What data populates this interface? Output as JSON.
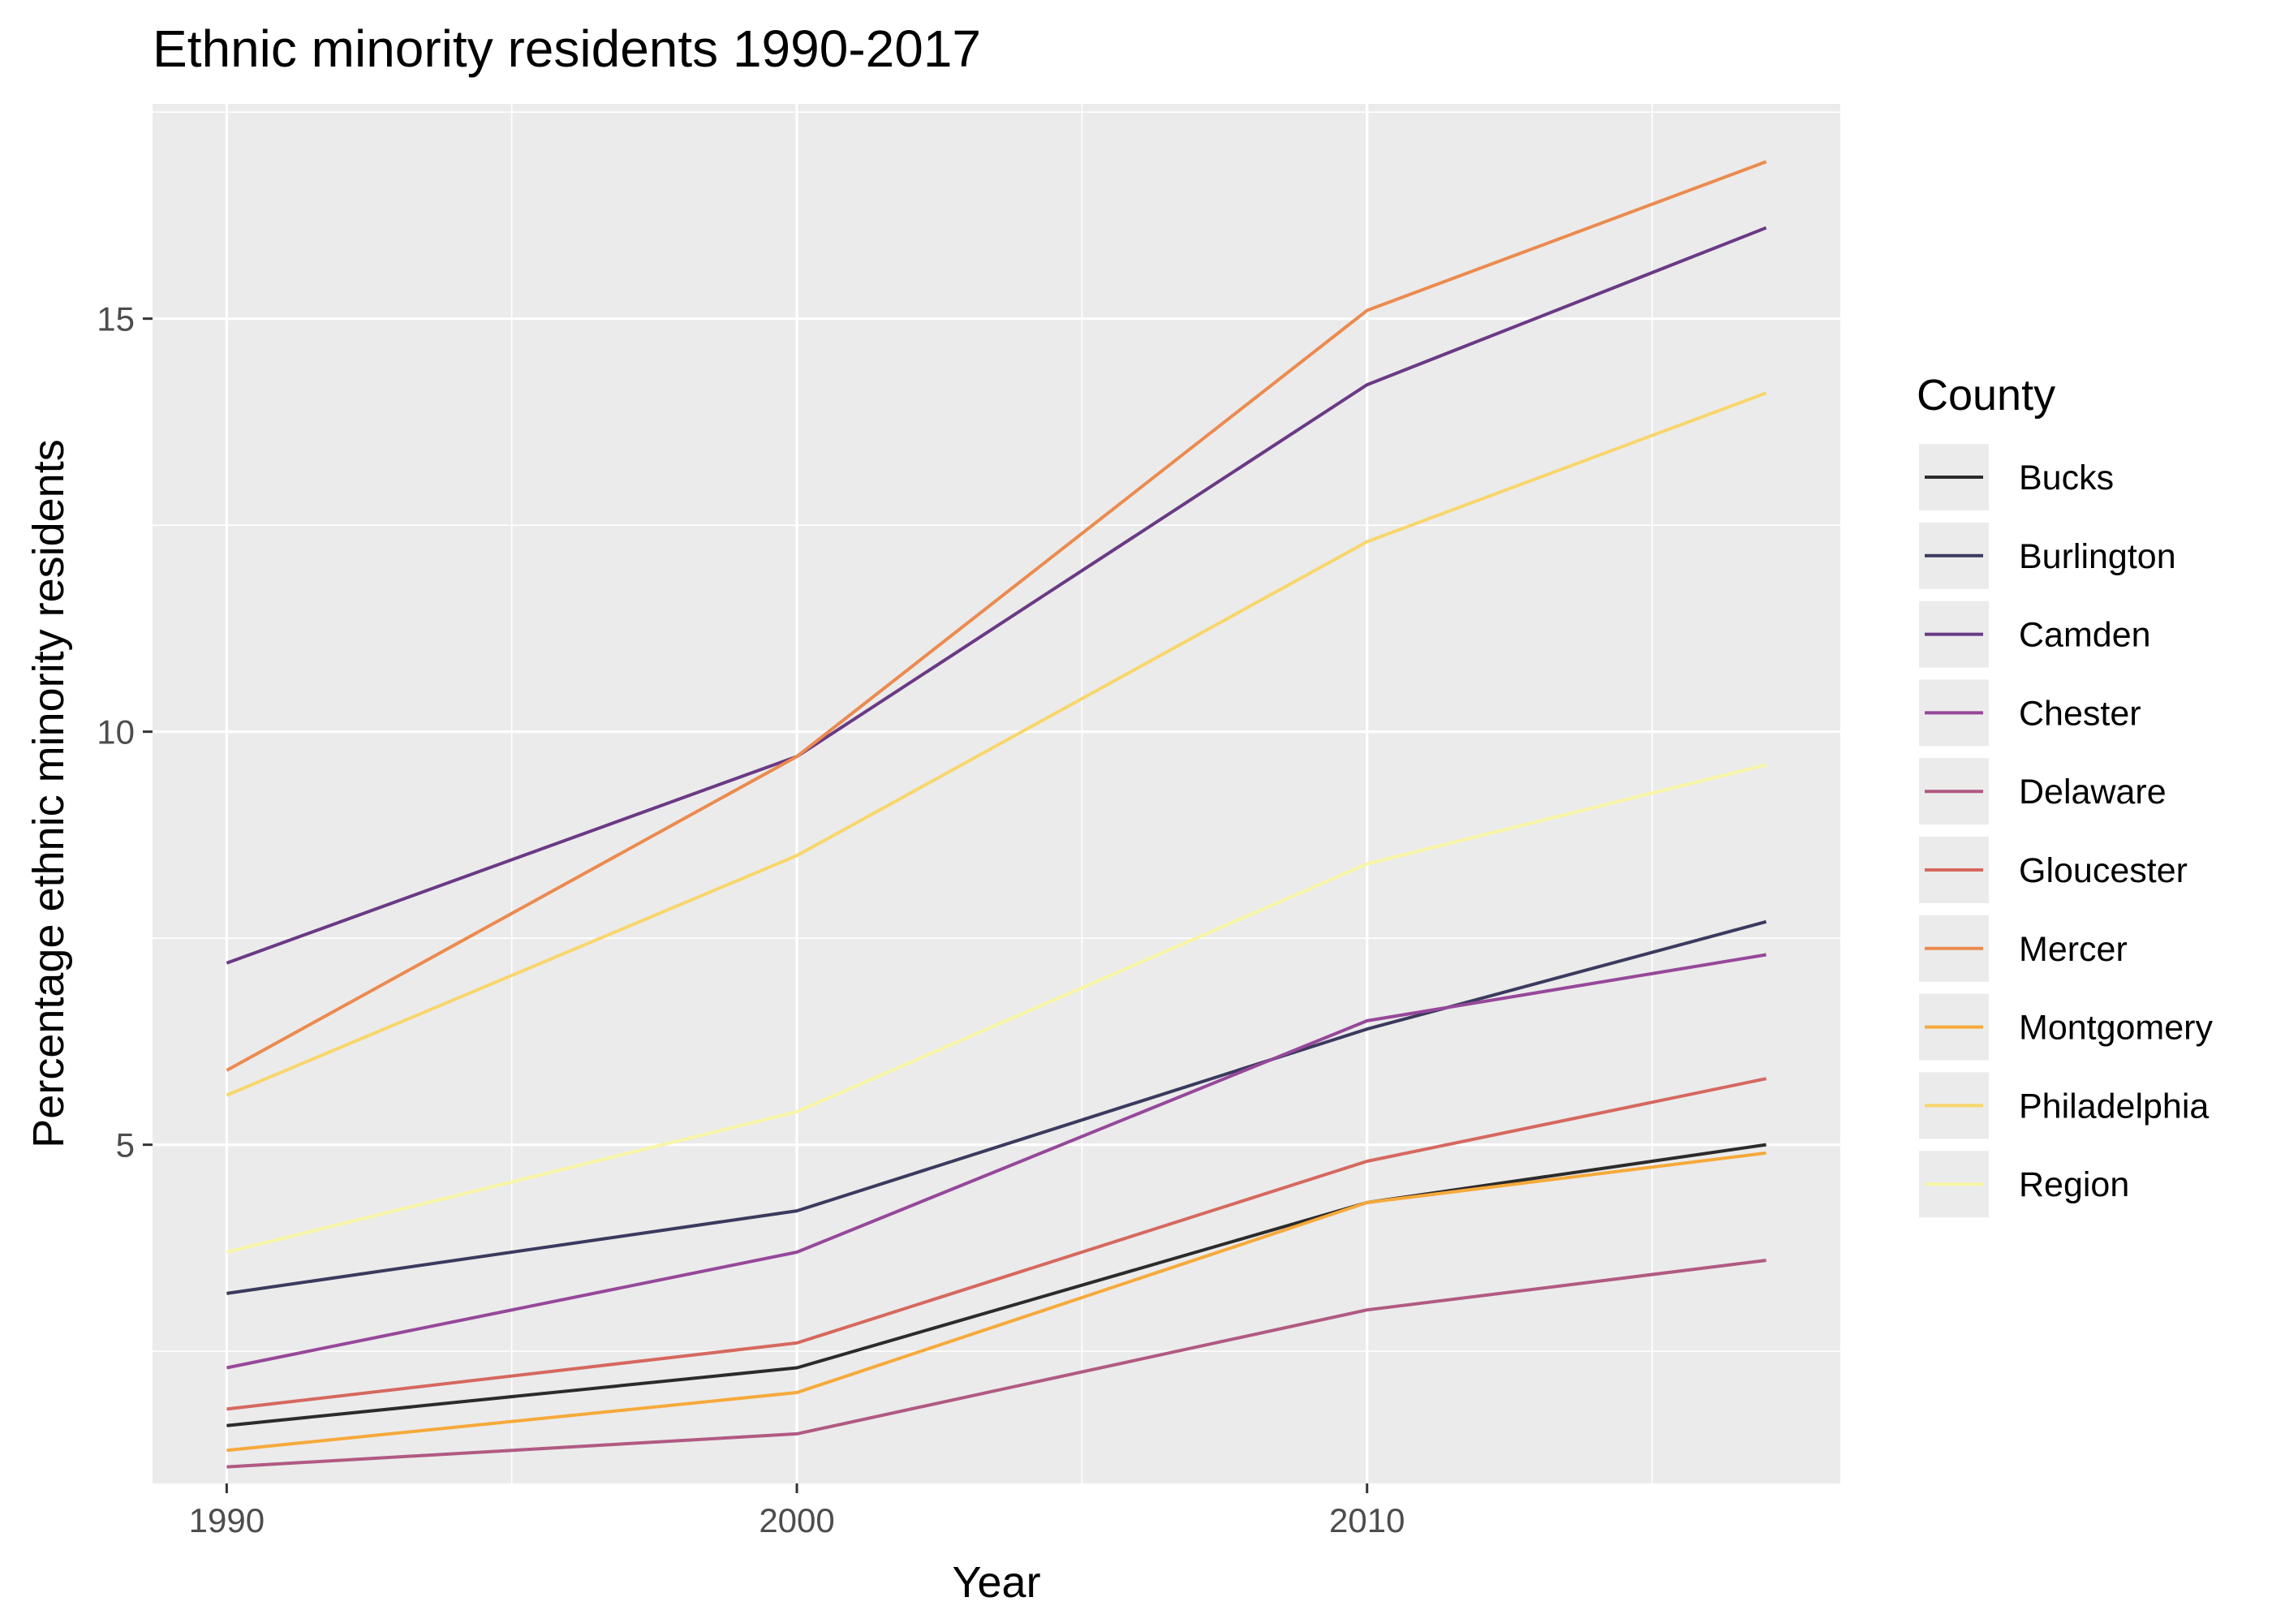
{
  "chart_data": {
    "type": "line",
    "title": "Ethnic minority residents 1990-2017",
    "xlabel": "Year",
    "ylabel": "Percentage ethnic minority residents",
    "xlim": [
      1988.7,
      2018.3
    ],
    "ylim": [
      0.9,
      17.6
    ],
    "x_ticks": [
      1990,
      2000,
      2010
    ],
    "x_minor_ticks": [
      1995,
      2005,
      2015
    ],
    "y_ticks": [
      5,
      10,
      15
    ],
    "y_minor_ticks": [
      2.5,
      7.5,
      12.5,
      17.5
    ],
    "x": [
      1990,
      2000,
      2010,
      2017
    ],
    "grid": true,
    "panel_background": "#ebebeb",
    "grid_color": "#ffffff",
    "legend": {
      "title": "County",
      "position": "right"
    },
    "series": [
      {
        "name": "Bucks",
        "color": "#2b2b2b",
        "values": [
          1.6,
          2.3,
          4.3,
          5.0
        ]
      },
      {
        "name": "Burlington",
        "color": "#3b3a5e",
        "values": [
          3.2,
          4.2,
          6.4,
          7.7
        ]
      },
      {
        "name": "Camden",
        "color": "#6a3a85",
        "values": [
          7.2,
          9.7,
          14.2,
          16.1
        ]
      },
      {
        "name": "Chester",
        "color": "#96489a",
        "values": [
          2.3,
          3.7,
          6.5,
          7.3
        ]
      },
      {
        "name": "Delaware",
        "color": "#b15a82",
        "values": [
          1.1,
          1.5,
          3.0,
          3.6
        ]
      },
      {
        "name": "Gloucester",
        "color": "#d6685f",
        "values": [
          1.8,
          2.6,
          4.8,
          5.8
        ]
      },
      {
        "name": "Mercer",
        "color": "#ec8a4e",
        "values": [
          5.9,
          9.7,
          15.1,
          16.9
        ]
      },
      {
        "name": "Montgomery",
        "color": "#f6a93a",
        "values": [
          1.3,
          2.0,
          4.3,
          4.9
        ]
      },
      {
        "name": "Philadelphia",
        "color": "#f8d66a",
        "values": [
          5.6,
          8.5,
          12.3,
          14.1
        ]
      },
      {
        "name": "Region",
        "color": "#f8f6a6",
        "values": [
          3.7,
          5.4,
          8.4,
          9.6
        ]
      }
    ]
  }
}
